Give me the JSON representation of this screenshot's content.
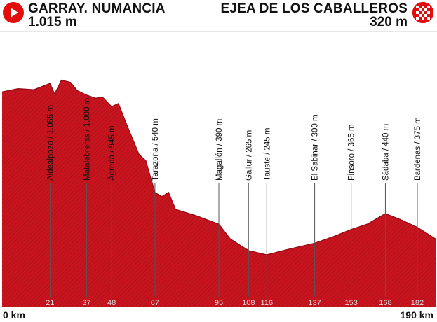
{
  "header": {
    "start_name": "GARRAY. NUMANCIA",
    "start_altitude": "1.015 m",
    "finish_name": "EJEA DE LOS CABALLEROS",
    "finish_altitude": "320 m",
    "start_icon": "play-circle-icon",
    "finish_icon": "checkered-flag-icon"
  },
  "colors": {
    "profile_fill": "#c8141e",
    "profile_dark": "#8e0a10",
    "waypoint_line": "#555555",
    "km_label": "#dddddd",
    "start_icon": "#e20c0c"
  },
  "chart_data": {
    "type": "area",
    "xlabel_start": "0 km",
    "xlabel_end": "190 km",
    "xlim": [
      0,
      190
    ],
    "ylim": [
      0,
      1300
    ],
    "profile": [
      {
        "km": 0,
        "alt": 1015
      },
      {
        "km": 7,
        "alt": 1030
      },
      {
        "km": 14,
        "alt": 1025
      },
      {
        "km": 21,
        "alt": 1055
      },
      {
        "km": 23,
        "alt": 1005
      },
      {
        "km": 26,
        "alt": 1070
      },
      {
        "km": 30,
        "alt": 1060
      },
      {
        "km": 33,
        "alt": 1020
      },
      {
        "km": 37,
        "alt": 1000
      },
      {
        "km": 41,
        "alt": 985
      },
      {
        "km": 44,
        "alt": 990
      },
      {
        "km": 48,
        "alt": 945
      },
      {
        "km": 51,
        "alt": 960
      },
      {
        "km": 55,
        "alt": 850
      },
      {
        "km": 60,
        "alt": 720
      },
      {
        "km": 63,
        "alt": 690
      },
      {
        "km": 67,
        "alt": 540
      },
      {
        "km": 70,
        "alt": 520
      },
      {
        "km": 73,
        "alt": 540
      },
      {
        "km": 76,
        "alt": 460
      },
      {
        "km": 85,
        "alt": 430
      },
      {
        "km": 95,
        "alt": 390
      },
      {
        "km": 100,
        "alt": 320
      },
      {
        "km": 108,
        "alt": 265
      },
      {
        "km": 116,
        "alt": 245
      },
      {
        "km": 125,
        "alt": 270
      },
      {
        "km": 137,
        "alt": 300
      },
      {
        "km": 145,
        "alt": 330
      },
      {
        "km": 153,
        "alt": 365
      },
      {
        "km": 160,
        "alt": 390
      },
      {
        "km": 168,
        "alt": 440
      },
      {
        "km": 175,
        "alt": 410
      },
      {
        "km": 182,
        "alt": 375
      },
      {
        "km": 190,
        "alt": 320
      }
    ],
    "waypoints": [
      {
        "km": 21,
        "km_label": "21",
        "label": "Aldealpozo / 1.055 m"
      },
      {
        "km": 37,
        "km_label": "37",
        "label": "Matalebreras / 1.000 m"
      },
      {
        "km": 48,
        "km_label": "48",
        "label": "Ágreda / 945 m"
      },
      {
        "km": 67,
        "km_label": "67",
        "label": "Tarazona / 540 m"
      },
      {
        "km": 95,
        "km_label": "95",
        "label": "Magallón / 390 m"
      },
      {
        "km": 108,
        "km_label": "108",
        "label": "Gallur / 265 m"
      },
      {
        "km": 116,
        "km_label": "116",
        "label": "Tauste / 245 m"
      },
      {
        "km": 137,
        "km_label": "137",
        "label": "El Sabinar / 300 m"
      },
      {
        "km": 153,
        "km_label": "153",
        "label": "Pinsoro / 365 m"
      },
      {
        "km": 168,
        "km_label": "168",
        "label": "Sádaba / 440 m"
      },
      {
        "km": 182,
        "km_label": "182",
        "label": "Bardenas / 375 m"
      }
    ]
  }
}
